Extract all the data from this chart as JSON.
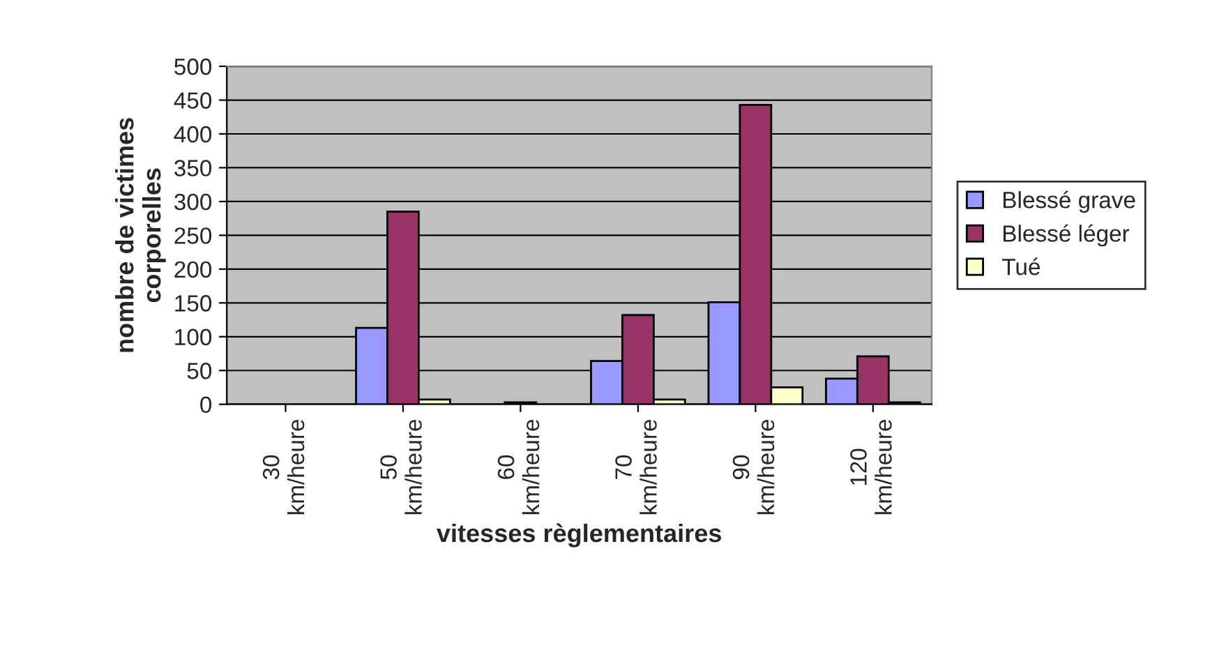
{
  "chart_data": {
    "type": "bar",
    "xlabel": "vitesses règlementaires",
    "ylabel": "nombre de victimes\ncorporelles",
    "categories": [
      "30\nkm/heure",
      "50\nkm/heure",
      "60\nkm/heure",
      "70\nkm/heure",
      "90\nkm/heure",
      "120\nkm/heure"
    ],
    "series": [
      {
        "name": "Blessé grave",
        "color": "#9999ff",
        "values": [
          null,
          113,
          null,
          64,
          151,
          38
        ]
      },
      {
        "name": "Blessé léger",
        "color": "#993366",
        "values": [
          null,
          285,
          3,
          132,
          443,
          71
        ]
      },
      {
        "name": "Tué",
        "color": "#ffffcc",
        "values": [
          null,
          7,
          null,
          7,
          25,
          3
        ]
      }
    ],
    "ylim": [
      0,
      500
    ],
    "yticks": [
      0,
      50,
      100,
      150,
      200,
      250,
      300,
      350,
      400,
      450,
      500
    ],
    "grid": "y",
    "legend": "right"
  }
}
